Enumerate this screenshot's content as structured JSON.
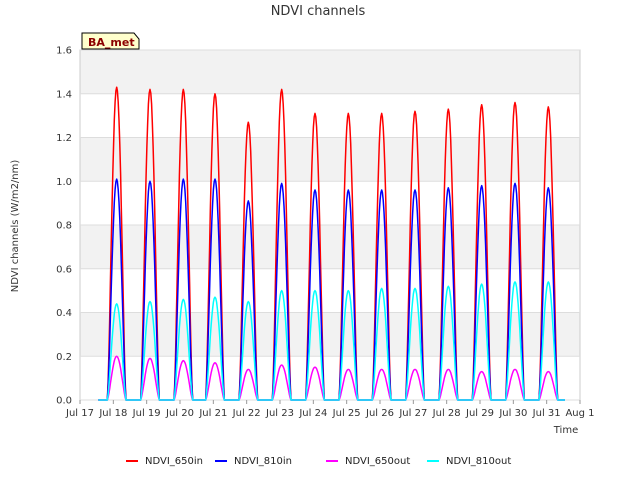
{
  "chart_data": {
    "type": "line",
    "title": "NDVI channels",
    "xlabel": "Time",
    "ylabel": "NDVI channels (W/m2/nm)",
    "badge": "BA_met",
    "ylim": [
      0,
      1.6
    ],
    "yticks": [
      "0.0",
      "0.2",
      "0.4",
      "0.6",
      "0.8",
      "1.0",
      "1.2",
      "1.4",
      "1.6"
    ],
    "xticks": [
      "Jul 17",
      "Jul 18",
      "Jul 19",
      "Jul 20",
      "Jul 21",
      "Jul 22",
      "Jul 23",
      "Jul 24",
      "Jul 25",
      "Jul 26",
      "Jul 27",
      "Jul 28",
      "Jul 29",
      "Jul 30",
      "Jul 31",
      "Aug 1"
    ],
    "x_range_days": [
      17,
      32
    ],
    "day_centers": [
      18.1,
      19.1,
      20.1,
      21.05,
      22.05,
      23.05,
      24.05,
      25.05,
      26.05,
      27.05,
      28.05,
      29.05,
      30.05,
      31.05
    ],
    "series": [
      {
        "name": "NDVI_650in",
        "color": "#ff0000",
        "daily_peaks": [
          1.43,
          1.42,
          1.42,
          1.4,
          1.27,
          1.42,
          1.31,
          1.31,
          1.31,
          1.32,
          1.33,
          1.35,
          1.36,
          1.34
        ]
      },
      {
        "name": "NDVI_810in",
        "color": "#0000ff",
        "daily_peaks": [
          1.01,
          1.0,
          1.01,
          1.01,
          0.91,
          0.99,
          0.96,
          0.96,
          0.96,
          0.96,
          0.97,
          0.98,
          0.99,
          0.97
        ]
      },
      {
        "name": "NDVI_650out",
        "color": "#ff00ff",
        "daily_peaks": [
          0.2,
          0.19,
          0.18,
          0.17,
          0.14,
          0.16,
          0.15,
          0.14,
          0.14,
          0.14,
          0.14,
          0.13,
          0.14,
          0.13
        ]
      },
      {
        "name": "NDVI_810out",
        "color": "#00ffff",
        "daily_peaks": [
          0.44,
          0.45,
          0.46,
          0.47,
          0.45,
          0.5,
          0.5,
          0.5,
          0.51,
          0.51,
          0.52,
          0.53,
          0.54,
          0.54
        ]
      }
    ]
  }
}
